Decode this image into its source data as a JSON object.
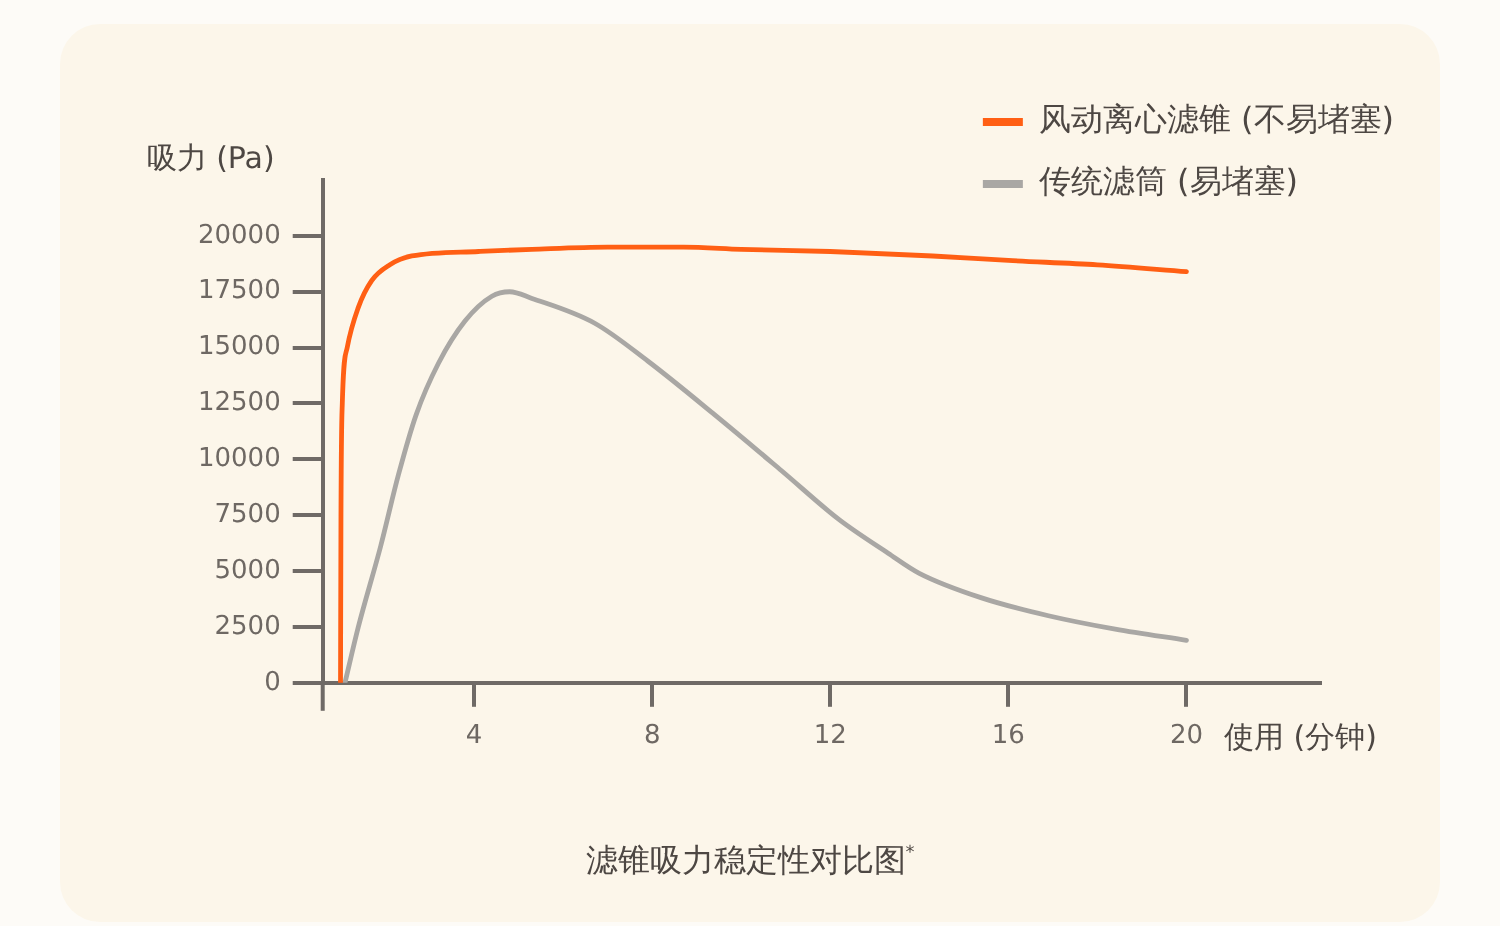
{
  "chart_data": {
    "type": "line",
    "title": "滤锥吸力稳定性对比图$^{*}$",
    "xlabel": "使用 (分钟)",
    "ylabel": "吸力 (Pa)",
    "series": [
      {
        "name": "风动离心滤锥 (不易堵塞)",
        "color": "#ff5f14",
        "x": [
          1.0,
          1.01,
          1.04,
          1.15,
          1.4,
          1.7,
          2.1,
          2.6,
          4.1,
          5.3,
          7,
          8.7,
          10,
          12,
          14.3,
          16,
          18,
          20
        ],
        "values": [
          0,
          7500,
          12500,
          15000,
          16800,
          18000,
          18700,
          19100,
          19300,
          19400,
          19500,
          19500,
          19400,
          19300,
          19100,
          18900,
          18700,
          18400
        ]
      },
      {
        "name": "传统滤筒 (易堵塞)",
        "color": "#a9a7a4",
        "x": [
          1.1,
          1.4,
          1.9,
          2.3,
          2.7,
          3.2,
          3.8,
          4.4,
          4.8,
          5.3,
          6.7,
          7.9,
          9.4,
          10.9,
          12.2,
          13.3,
          14,
          15.4,
          16.9,
          18.4,
          20
        ],
        "values": [
          0,
          2500,
          6100,
          9300,
          12000,
          14300,
          16200,
          17300,
          17500,
          17200,
          16100,
          14400,
          12000,
          9500,
          7300,
          5800,
          4900,
          3800,
          3000,
          2400,
          1900
        ]
      }
    ],
    "xlim": [
      0.6,
      23
    ],
    "xticks": [
      4,
      8,
      12,
      16,
      20
    ],
    "ylim": [
      0,
      22500
    ],
    "yticks": [
      0,
      2500,
      5000,
      7500,
      10000,
      12500,
      15000,
      17500,
      20000
    ],
    "legend": "top right",
    "marker": "none",
    "line_style": "solid"
  }
}
